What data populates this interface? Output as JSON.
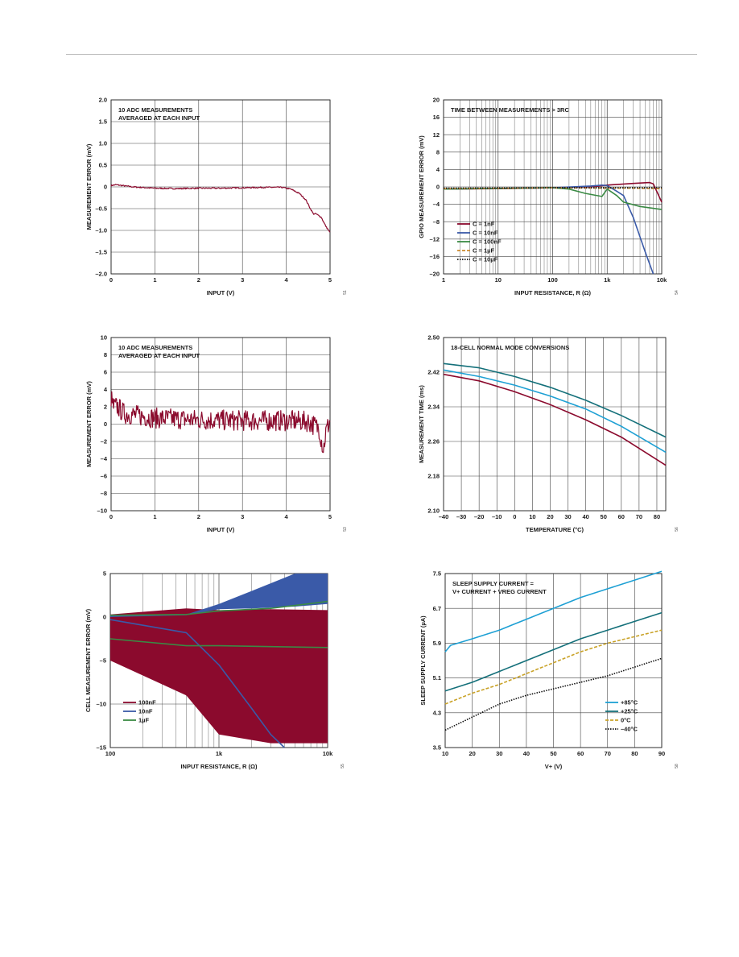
{
  "colors": {
    "maroon": "#8b0a2d",
    "blue": "#3a5aa8",
    "green": "#3a8a44",
    "orange": "#cc8a2e",
    "black": "#111111",
    "cyan": "#1ea0d4",
    "teal": "#14707a",
    "gold": "#c9a227",
    "grid": "#444444"
  },
  "chart_data": [
    {
      "id": "c1",
      "type": "line",
      "annotation": [
        "10 ADC MEASUREMENTS",
        "AVERAGED AT EACH INPUT"
      ],
      "xlabel": "INPUT (V)",
      "ylabel": "MEASUREMENT ERROR (mV)",
      "xlim": [
        0,
        5
      ],
      "ylim": [
        -2,
        2
      ],
      "xticks": [
        0,
        1,
        2,
        3,
        4,
        5
      ],
      "xtick_labels": [
        "0",
        "1",
        "2",
        "3",
        "4",
        "5"
      ],
      "yticks": [
        -2,
        -1.5,
        -1,
        -0.5,
        0,
        0.5,
        1,
        1.5,
        2
      ],
      "ytick_labels": [
        "–2.0",
        "–1.5",
        "–1.0",
        "–0.5",
        "0",
        "0.5",
        "1.0",
        "1.5",
        "2.0"
      ],
      "figure_id": "51",
      "series": [
        {
          "color": "#8b0a2d",
          "x": [
            0,
            0.1,
            0.5,
            1,
            1.5,
            2,
            2.5,
            3,
            3.5,
            3.9,
            4.1,
            4.3,
            4.45,
            4.55,
            4.62,
            4.68,
            4.8,
            4.9,
            5.0
          ],
          "y": [
            0.03,
            0.05,
            0.0,
            -0.03,
            -0.04,
            -0.03,
            -0.03,
            -0.02,
            -0.01,
            -0.01,
            -0.05,
            -0.15,
            -0.3,
            -0.5,
            -0.62,
            -0.62,
            -0.7,
            -0.9,
            -1.05
          ],
          "noise": 0.015
        }
      ]
    },
    {
      "id": "c2",
      "type": "line",
      "annotation": [
        "TIME BETWEEN MEASUREMENTS > 3RC"
      ],
      "xlabel": "INPUT RESISTANCE, R (Ω)",
      "ylabel": "GPIO MEASUREMENT ERROR (mV)",
      "xscale": "log",
      "xlim": [
        1,
        10000
      ],
      "ylim": [
        -20,
        20
      ],
      "xticks": [
        1,
        10,
        100,
        1000,
        10000
      ],
      "xtick_labels": [
        "1",
        "10",
        "100",
        "1k",
        "10k"
      ],
      "yticks": [
        -20,
        -16,
        -12,
        -8,
        -4,
        0,
        4,
        8,
        12,
        16,
        20
      ],
      "ytick_labels": [
        "–20",
        "–16",
        "–12",
        "–8",
        "–4",
        "0",
        "4",
        "8",
        "12",
        "16",
        "20"
      ],
      "figure_id": "54",
      "series": [
        {
          "name": "C = 1nF",
          "color": "#8b0a2d",
          "dash": "",
          "x": [
            1,
            10,
            100,
            600,
            1000,
            3000,
            6000,
            7000,
            10000
          ],
          "y": [
            -0.5,
            -0.4,
            -0.2,
            0.1,
            0.4,
            0.8,
            1.0,
            0.7,
            -3.5
          ]
        },
        {
          "name": "C = 10nF",
          "color": "#3a5aa8",
          "dash": "",
          "x": [
            1,
            100,
            500,
            800,
            1000,
            1500,
            2000,
            3000,
            5000,
            7000
          ],
          "y": [
            -0.5,
            -0.2,
            0.2,
            0.4,
            0.3,
            -1.0,
            -2.0,
            -7.0,
            -15.0,
            -20.0
          ]
        },
        {
          "name": "C = 100nF",
          "color": "#3a8a44",
          "dash": "",
          "x": [
            1,
            100,
            200,
            400,
            800,
            1000,
            1500,
            2000,
            4000,
            10000
          ],
          "y": [
            -0.5,
            -0.2,
            -0.5,
            -1.5,
            -2.2,
            -0.5,
            -2.0,
            -3.5,
            -4.5,
            -5.2
          ]
        },
        {
          "name": "C = 1µF",
          "color": "#cc8a2e",
          "dash": "4,2",
          "x": [
            1,
            100,
            1000,
            3000,
            10000
          ],
          "y": [
            -0.4,
            -0.2,
            -0.3,
            -0.3,
            -0.4
          ]
        },
        {
          "name": "C = 10µF",
          "color": "#111111",
          "dash": "1.5,1.5",
          "x": [
            1,
            100,
            1000,
            10000
          ],
          "y": [
            -0.3,
            -0.2,
            -0.2,
            -0.2
          ]
        }
      ]
    },
    {
      "id": "c3",
      "type": "line",
      "annotation": [
        "10 ADC MEASUREMENTS",
        "AVERAGED AT EACH INPUT"
      ],
      "xlabel": "INPUT (V)",
      "ylabel": "MEASUREMENT ERROR (mV)",
      "xlim": [
        0,
        5
      ],
      "ylim": [
        -10,
        10
      ],
      "xticks": [
        0,
        1,
        2,
        3,
        4,
        5
      ],
      "xtick_labels": [
        "0",
        "1",
        "2",
        "3",
        "4",
        "5"
      ],
      "yticks": [
        -10,
        -8,
        -6,
        -4,
        -2,
        0,
        2,
        4,
        6,
        8,
        10
      ],
      "ytick_labels": [
        "–10",
        "–8",
        "–6",
        "–4",
        "–2",
        "0",
        "2",
        "4",
        "6",
        "8",
        "10"
      ],
      "figure_id": "53",
      "series": [
        {
          "color": "#8b0a2d",
          "x": [
            0,
            0.05,
            0.15,
            0.3,
            0.6,
            1,
            2,
            3,
            4,
            4.5,
            4.75,
            4.85,
            4.9,
            5.0
          ],
          "y": [
            3.0,
            2.0,
            2.0,
            1.2,
            1.0,
            0.7,
            0.5,
            0.4,
            0.4,
            0.3,
            -0.5,
            -3.0,
            -1.0,
            0.5
          ],
          "noise": 1.2
        }
      ]
    },
    {
      "id": "c4",
      "type": "line",
      "annotation": [
        "18-CELL NORMAL MODE CONVERSIONS"
      ],
      "xlabel": "TEMPERATURE (°C)",
      "ylabel": "MEASUREMENT TIME (ms)",
      "xlim": [
        -40,
        85
      ],
      "ylim": [
        2.1,
        2.5
      ],
      "xticks": [
        -40,
        -30,
        -20,
        -10,
        0,
        10,
        20,
        30,
        40,
        50,
        60,
        70,
        80
      ],
      "xtick_labels": [
        "–40",
        "–30",
        "–20",
        "–10",
        "0",
        "10",
        "20",
        "30",
        "40",
        "50",
        "60",
        "70",
        "80"
      ],
      "yticks": [
        2.1,
        2.18,
        2.26,
        2.34,
        2.42,
        2.5
      ],
      "ytick_labels": [
        "2.10",
        "2.18",
        "2.26",
        "2.34",
        "2.42",
        "2.50"
      ],
      "figure_id": "56",
      "series": [
        {
          "color": "#14707a",
          "x": [
            -40,
            -20,
            0,
            20,
            40,
            60,
            85
          ],
          "y": [
            2.44,
            2.43,
            2.41,
            2.385,
            2.355,
            2.32,
            2.27
          ]
        },
        {
          "color": "#1ea0d4",
          "x": [
            -40,
            -20,
            0,
            20,
            40,
            60,
            85
          ],
          "y": [
            2.425,
            2.41,
            2.39,
            2.365,
            2.335,
            2.295,
            2.235
          ]
        },
        {
          "color": "#8b0a2d",
          "x": [
            -40,
            -20,
            0,
            20,
            40,
            60,
            85
          ],
          "y": [
            2.415,
            2.4,
            2.375,
            2.345,
            2.31,
            2.27,
            2.205
          ]
        }
      ]
    },
    {
      "id": "c5",
      "type": "area",
      "xlabel": "INPUT RESISTANCE, R (Ω)",
      "ylabel": "CELL MEASUREMENT ERROR (mV)",
      "xscale": "log",
      "xlim": [
        100,
        10000
      ],
      "ylim": [
        -15,
        5
      ],
      "xticks": [
        100,
        1000,
        10000
      ],
      "xtick_labels": [
        "100",
        "1k",
        "10k"
      ],
      "yticks": [
        -15,
        -10,
        -5,
        0,
        5
      ],
      "ytick_labels": [
        "–15",
        "–10",
        "–5",
        "0",
        "5"
      ],
      "figure_id": "55",
      "series": [
        {
          "name": "100nF",
          "color": "#8b0a2d",
          "band_x": [
            100,
            500,
            1000,
            3000,
            10000
          ],
          "band_upper": [
            0.3,
            1.0,
            0.8,
            0.9,
            0.8
          ],
          "band_lower": [
            -5.0,
            -9.0,
            -13.5,
            -14.5,
            -14.5
          ]
        },
        {
          "name": "10nF",
          "color": "#3a5aa8",
          "band_x": [
            100,
            500,
            1000,
            2000,
            5000,
            10000
          ],
          "band_upper": [
            0.2,
            0.3,
            1.5,
            3.0,
            5.0,
            5.0
          ],
          "band_lower": [
            0.0,
            0.2,
            0.9,
            1.0,
            1.2,
            1.5
          ],
          "x": [
            100,
            500,
            1000,
            2000,
            3000,
            4000
          ],
          "y": [
            -0.3,
            -1.8,
            -5.5,
            -10.5,
            -13.5,
            -15.0
          ]
        },
        {
          "name": "1µF",
          "color": "#3a8a44",
          "x": [
            100,
            500,
            1000,
            3000,
            10000
          ],
          "y": [
            -2.5,
            -3.3,
            -3.3,
            -3.4,
            -3.5
          ],
          "x2": [
            100,
            500,
            1000,
            3000,
            10000
          ],
          "y2": [
            0.2,
            0.3,
            0.7,
            1.0,
            1.8
          ]
        }
      ]
    },
    {
      "id": "c6",
      "type": "line",
      "annotation": [
        "SLEEP SUPPLY CURRENT =",
        "V+ CURRENT + VREG CURRENT"
      ],
      "xlabel": "V+ (V)",
      "ylabel": "SLEEP SUPPLY CURRENT (µA)",
      "xlim": [
        10,
        90
      ],
      "ylim": [
        3.5,
        7.5
      ],
      "xticks": [
        10,
        20,
        30,
        40,
        50,
        60,
        70,
        80,
        90
      ],
      "xtick_labels": [
        "10",
        "20",
        "30",
        "40",
        "50",
        "60",
        "70",
        "80",
        "90"
      ],
      "yticks": [
        3.5,
        4.3,
        5.1,
        5.9,
        6.7,
        7.5
      ],
      "ytick_labels": [
        "3.5",
        "4.3",
        "5.1",
        "5.9",
        "6.7",
        "7.5"
      ],
      "figure_id": "58",
      "series": [
        {
          "name": "+85°C",
          "color": "#1ea0d4",
          "dash": "",
          "x": [
            10,
            12,
            20,
            30,
            40,
            50,
            60,
            70,
            80,
            90
          ],
          "y": [
            5.7,
            5.85,
            6.0,
            6.2,
            6.45,
            6.7,
            6.95,
            7.15,
            7.35,
            7.55
          ]
        },
        {
          "name": "+25°C",
          "color": "#14707a",
          "dash": "",
          "x": [
            10,
            20,
            30,
            40,
            50,
            60,
            70,
            80,
            90
          ],
          "y": [
            4.8,
            5.0,
            5.25,
            5.5,
            5.75,
            6.0,
            6.2,
            6.4,
            6.6
          ]
        },
        {
          "name": "0°C",
          "color": "#c9a227",
          "dash": "4,2",
          "x": [
            10,
            20,
            30,
            40,
            50,
            60,
            70,
            80,
            90
          ],
          "y": [
            4.5,
            4.75,
            4.95,
            5.2,
            5.45,
            5.7,
            5.9,
            6.05,
            6.2
          ]
        },
        {
          "name": "–40°C",
          "color": "#111111",
          "dash": "1.5,1.5",
          "x": [
            10,
            20,
            30,
            40,
            50,
            60,
            70,
            80,
            90
          ],
          "y": [
            3.9,
            4.2,
            4.5,
            4.7,
            4.85,
            5.0,
            5.15,
            5.35,
            5.55
          ]
        }
      ]
    }
  ]
}
